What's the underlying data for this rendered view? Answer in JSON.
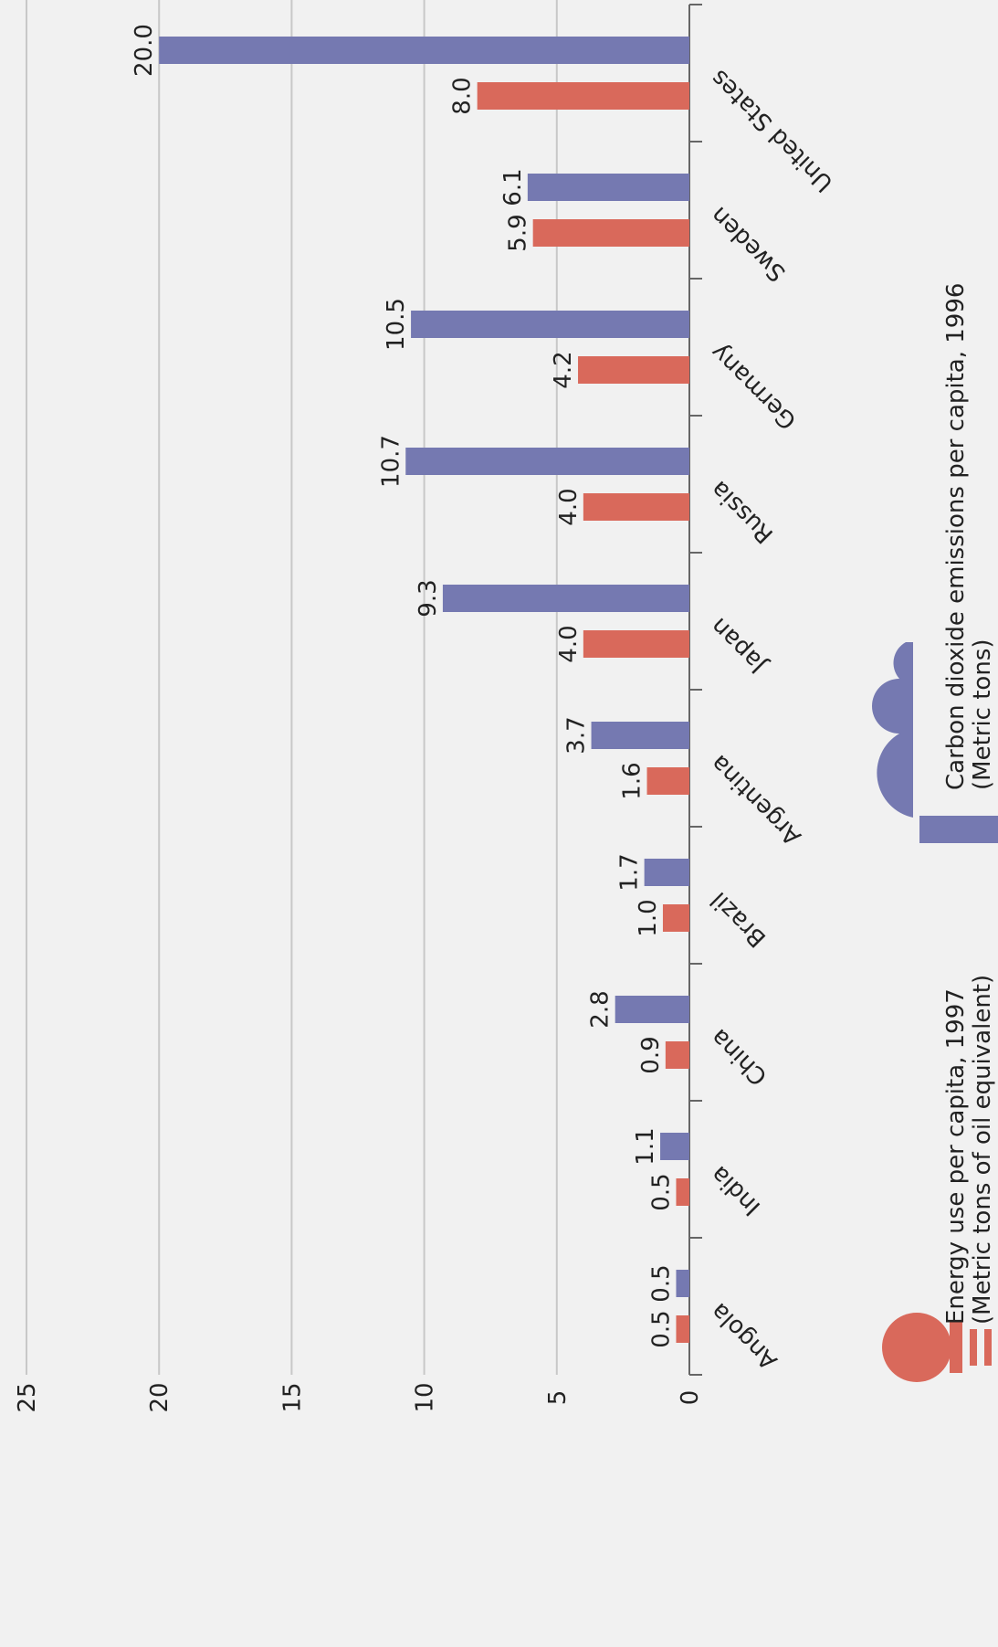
{
  "chart_data": {
    "type": "bar",
    "categories": [
      "Angola",
      "India",
      "China",
      "Brazil",
      "Argentina",
      "Japan",
      "Russia",
      "Germany",
      "Sweden",
      "United States"
    ],
    "series": [
      {
        "name": "Energy use per capita, 1997",
        "unit": "(Metric tons of oil equivalent)",
        "color": "#d9695b",
        "values": [
          0.5,
          0.5,
          0.9,
          1.0,
          1.6,
          4.0,
          4.0,
          4.2,
          5.9,
          8.0
        ],
        "value_labels": [
          "0.5",
          "0.5",
          "0.9",
          "1.0",
          "1.6",
          "4.0",
          "4.0",
          "4.2",
          "5.9",
          "8.0"
        ]
      },
      {
        "name": "Carbon dioxide emissions per capita, 1996",
        "unit": "(Metric tons)",
        "color": "#7579b1",
        "values": [
          0.5,
          1.1,
          2.8,
          1.7,
          3.7,
          9.3,
          10.7,
          10.5,
          6.1,
          20.0
        ],
        "value_labels": [
          "0.5",
          "1.1",
          "2.8",
          "1.7",
          "3.7",
          "9.3",
          "10.7",
          "10.5",
          "6.1",
          "20.0"
        ]
      }
    ],
    "ylim": [
      0,
      25
    ],
    "yticks": [
      0,
      5,
      10,
      15,
      20,
      25
    ],
    "grid": true
  }
}
